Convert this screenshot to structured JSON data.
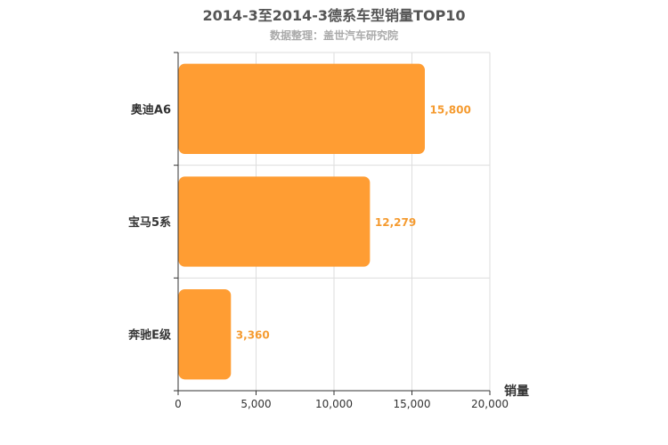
{
  "header": {
    "title": "2014-3至2014-3德系车型销量TOP10",
    "subtitle": "数据整理：盖世汽车研究院"
  },
  "colors": {
    "bar": "#ff9d33",
    "label": "#f59b30",
    "grid": "#dddddd",
    "axis": "#333333"
  },
  "chart_data": {
    "type": "bar",
    "orientation": "horizontal",
    "title": "2014-3至2014-3德系车型销量TOP10",
    "subtitle": "数据整理：盖世汽车研究院",
    "categories": [
      "奥迪A6",
      "宝马5系",
      "奔驰E级"
    ],
    "values": [
      15800,
      12279,
      3360
    ],
    "value_labels": [
      "15,800",
      "12,279",
      "3,360"
    ],
    "xlabel": "销量",
    "ylabel": "",
    "xlim": [
      0,
      20000
    ],
    "xticks": [
      0,
      5000,
      10000,
      15000,
      20000
    ],
    "xtick_labels": [
      "0",
      "5,000",
      "10,000",
      "15,000",
      "20,000"
    ],
    "grid": true,
    "legend": "none"
  }
}
